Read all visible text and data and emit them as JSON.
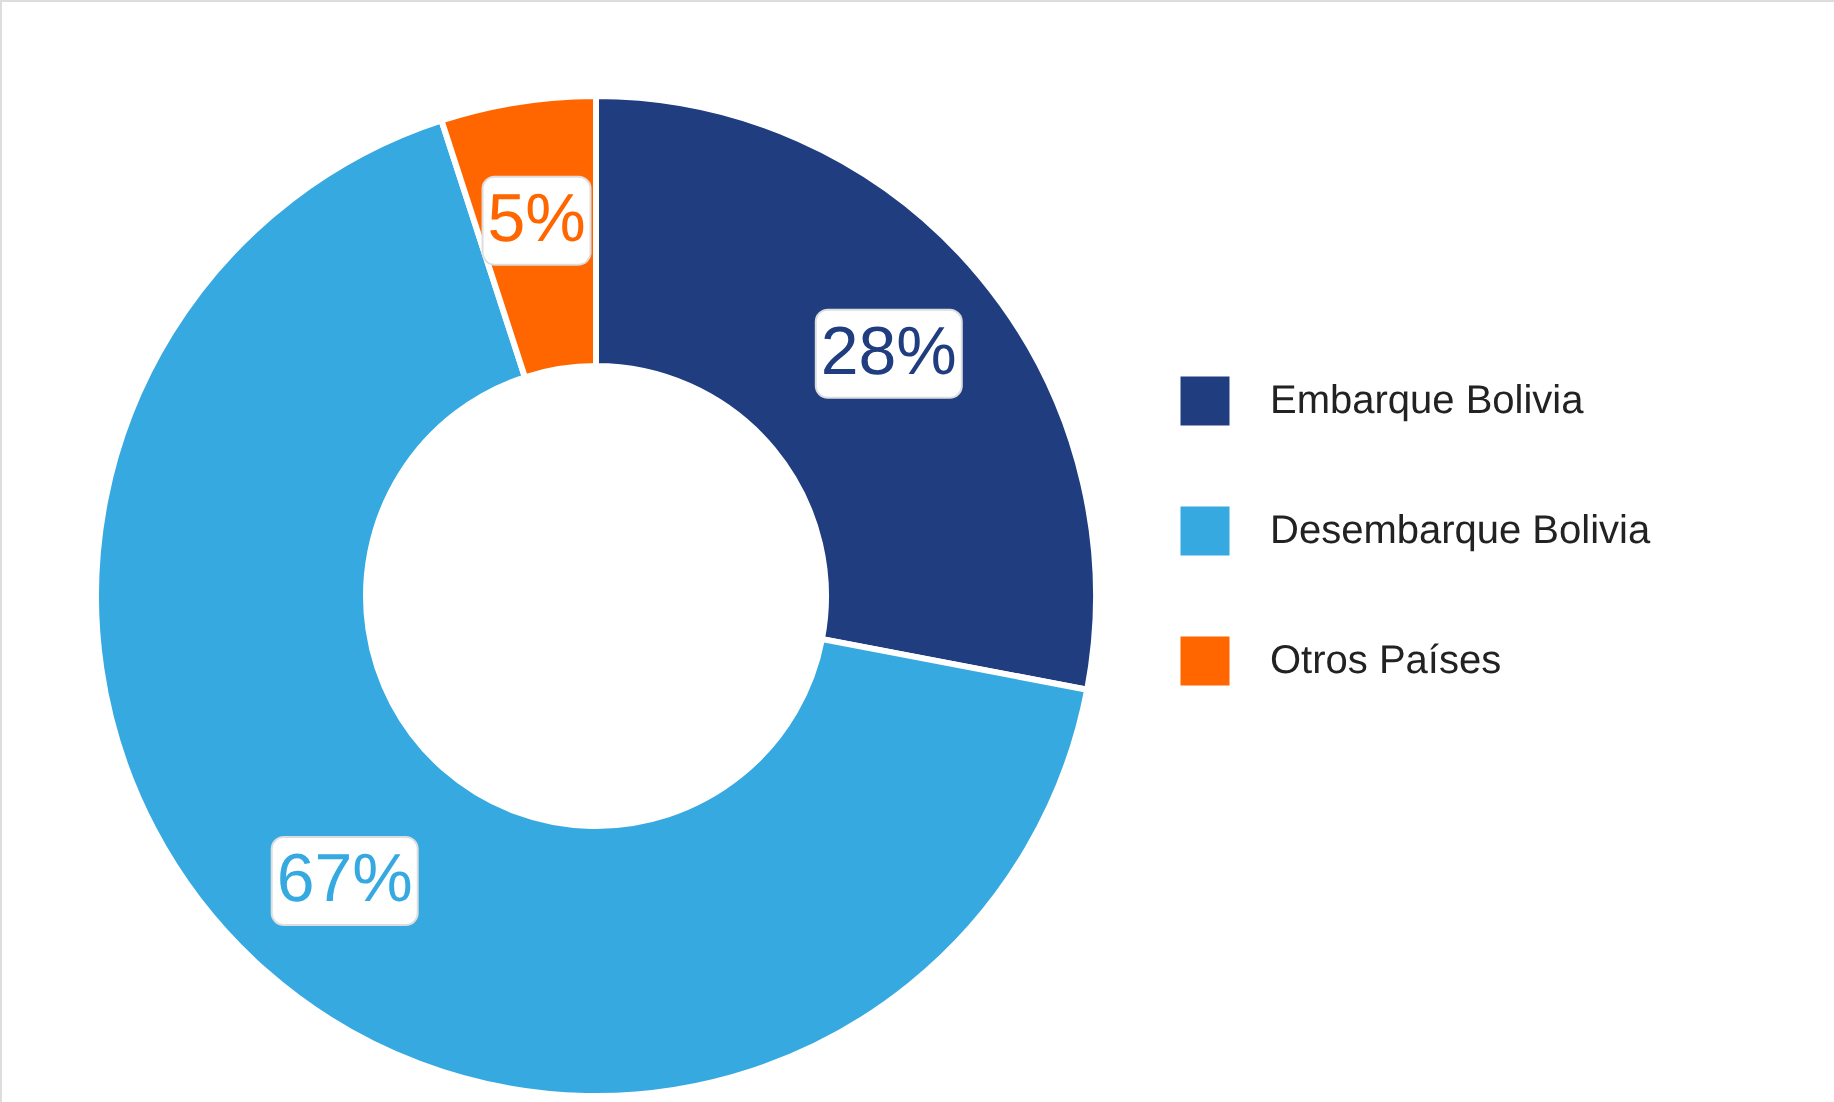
{
  "chart_data": {
    "type": "donut",
    "categories": [
      "Embarque Bolivia",
      "Desembarque Bolivia",
      "Otros Países"
    ],
    "values": [
      28,
      67,
      5
    ],
    "colors": [
      "#203d80",
      "#36a9e0",
      "#ff6600"
    ],
    "value_labels": [
      "28%",
      "67%",
      "5%"
    ],
    "legend": "right"
  }
}
